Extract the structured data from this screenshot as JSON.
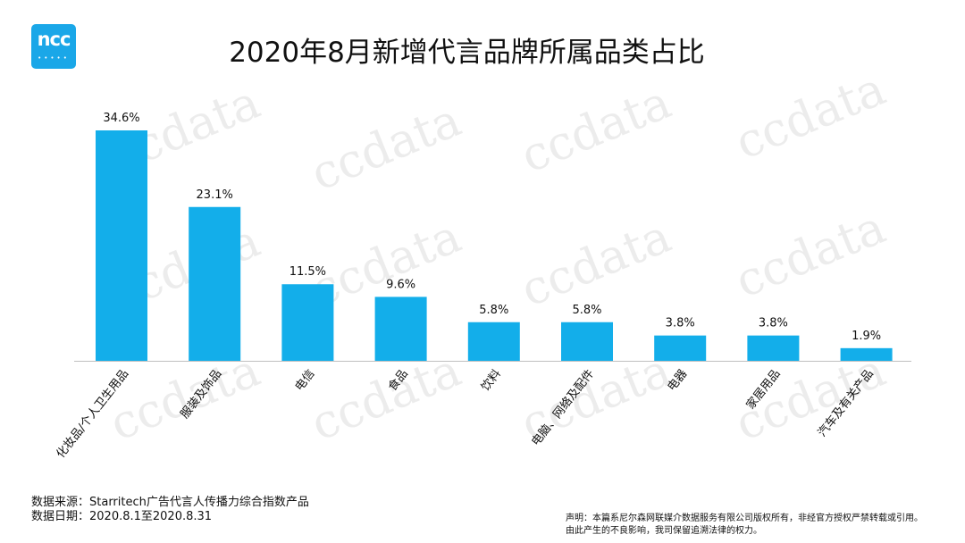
{
  "brand": {
    "logo_text": "ncc",
    "logo_color": "#1aa7e8"
  },
  "watermark_text": "ccdata",
  "chart_data": {
    "type": "bar",
    "title": "2020年8月新增代言品牌所属品类占比",
    "categories": [
      "化妆品/个人卫生用品",
      "服装及饰品",
      "电信",
      "食品",
      "饮料",
      "电脑、网络及配件",
      "电器",
      "家居用品",
      "汽车及有关产品"
    ],
    "values": [
      34.6,
      23.1,
      11.5,
      9.6,
      5.8,
      5.8,
      3.8,
      3.8,
      1.9
    ],
    "value_labels": [
      "34.6%",
      "23.1%",
      "11.5%",
      "9.6%",
      "5.8%",
      "5.8%",
      "3.8%",
      "3.8%",
      "1.9%"
    ],
    "unit": "%",
    "ylim": [
      0,
      35
    ],
    "grid": false,
    "legend": "none",
    "bar_color": "#13aeea",
    "xlabel": "",
    "ylabel": ""
  },
  "footer": {
    "source": "数据来源：Starritech广告代言人传播力综合指数产品",
    "date": "数据日期：2020.8.1至2020.8.31",
    "disclaimer_line1": "声明：本篇系尼尔森网联媒介数据服务有限公司版权所有，非经官方授权严禁转载或引用。",
    "disclaimer_line2": "由此产生的不良影响，我司保留追溯法律的权力。"
  }
}
